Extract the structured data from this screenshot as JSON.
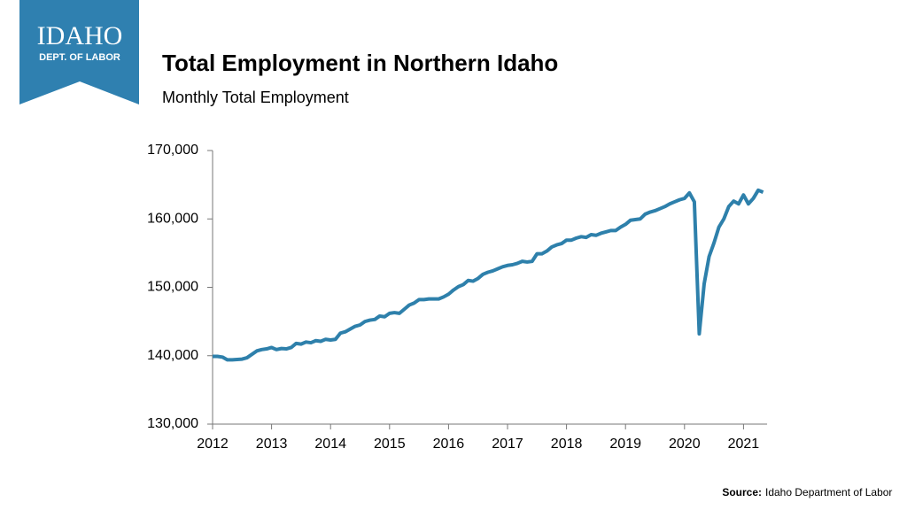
{
  "logo": {
    "name": "IDAHO",
    "dept": "DEPT. OF LABOR"
  },
  "source": {
    "label": "Source:",
    "text": "Idaho Department of Labor"
  },
  "chart_data": {
    "type": "line",
    "title": "Total Employment in Northern Idaho",
    "subtitle": "Monthly Total Employment",
    "xlim": [
      2012,
      2021.4
    ],
    "xticks": [
      2012,
      2013,
      2014,
      2015,
      2016,
      2017,
      2018,
      2019,
      2020,
      2021
    ],
    "ylim": [
      130000,
      170000
    ],
    "yticks": [
      {
        "value": 130000,
        "label": "130,000"
      },
      {
        "value": 140000,
        "label": "140,000"
      },
      {
        "value": 150000,
        "label": "150,000"
      },
      {
        "value": 160000,
        "label": "160,000"
      },
      {
        "value": 170000,
        "label": "170,000"
      }
    ],
    "grid": false,
    "series": [
      {
        "name": "Total Employment",
        "color": "#2e80ab",
        "x": [
          2012,
          2012.083,
          2012.167,
          2012.25,
          2012.333,
          2012.417,
          2012.5,
          2012.583,
          2012.667,
          2012.75,
          2012.833,
          2012.917,
          2013,
          2013.083,
          2013.167,
          2013.25,
          2013.333,
          2013.417,
          2013.5,
          2013.583,
          2013.667,
          2013.75,
          2013.833,
          2013.917,
          2014,
          2014.083,
          2014.167,
          2014.25,
          2014.333,
          2014.417,
          2014.5,
          2014.583,
          2014.667,
          2014.75,
          2014.833,
          2014.917,
          2015,
          2015.083,
          2015.167,
          2015.25,
          2015.333,
          2015.417,
          2015.5,
          2015.583,
          2015.667,
          2015.75,
          2015.833,
          2015.917,
          2016,
          2016.083,
          2016.167,
          2016.25,
          2016.333,
          2016.417,
          2016.5,
          2016.583,
          2016.667,
          2016.75,
          2016.833,
          2016.917,
          2017,
          2017.083,
          2017.167,
          2017.25,
          2017.333,
          2017.417,
          2017.5,
          2017.583,
          2017.667,
          2017.75,
          2017.833,
          2017.917,
          2018,
          2018.083,
          2018.167,
          2018.25,
          2018.333,
          2018.417,
          2018.5,
          2018.583,
          2018.667,
          2018.75,
          2018.833,
          2018.917,
          2019,
          2019.083,
          2019.167,
          2019.25,
          2019.333,
          2019.417,
          2019.5,
          2019.583,
          2019.667,
          2019.75,
          2019.833,
          2019.917,
          2020,
          2020.083,
          2020.167,
          2020.25,
          2020.333,
          2020.417,
          2020.5,
          2020.583,
          2020.667,
          2020.75,
          2020.833,
          2020.917,
          2021,
          2021.083,
          2021.167,
          2021.25,
          2021.333
        ],
        "values": [
          139900,
          139900,
          139800,
          139400,
          139400,
          139450,
          139500,
          139700,
          140200,
          140700,
          140900,
          141000,
          141200,
          140900,
          141050,
          141000,
          141200,
          141800,
          141700,
          142000,
          141900,
          142200,
          142100,
          142400,
          142300,
          142400,
          143300,
          143500,
          143900,
          144300,
          144500,
          145000,
          145200,
          145300,
          145800,
          145700,
          146200,
          146300,
          146200,
          146800,
          147400,
          147700,
          148200,
          148200,
          148300,
          148300,
          148300,
          148600,
          149000,
          149600,
          150100,
          150400,
          151000,
          150900,
          151300,
          151900,
          152200,
          152400,
          152700,
          153000,
          153200,
          153300,
          153500,
          153800,
          153700,
          153800,
          154900,
          154900,
          155300,
          155900,
          156200,
          156400,
          156900,
          156900,
          157200,
          157400,
          157300,
          157700,
          157600,
          157900,
          158100,
          158300,
          158300,
          158800,
          159200,
          159800,
          159900,
          160000,
          160700,
          161000,
          161200,
          161500,
          161800,
          162200,
          162500,
          162800,
          163000,
          163800,
          162500,
          143200,
          150500,
          154500,
          156500,
          158800,
          160000,
          161800,
          162600,
          162200,
          163500,
          162200,
          163000,
          164200,
          163900
        ]
      }
    ]
  }
}
